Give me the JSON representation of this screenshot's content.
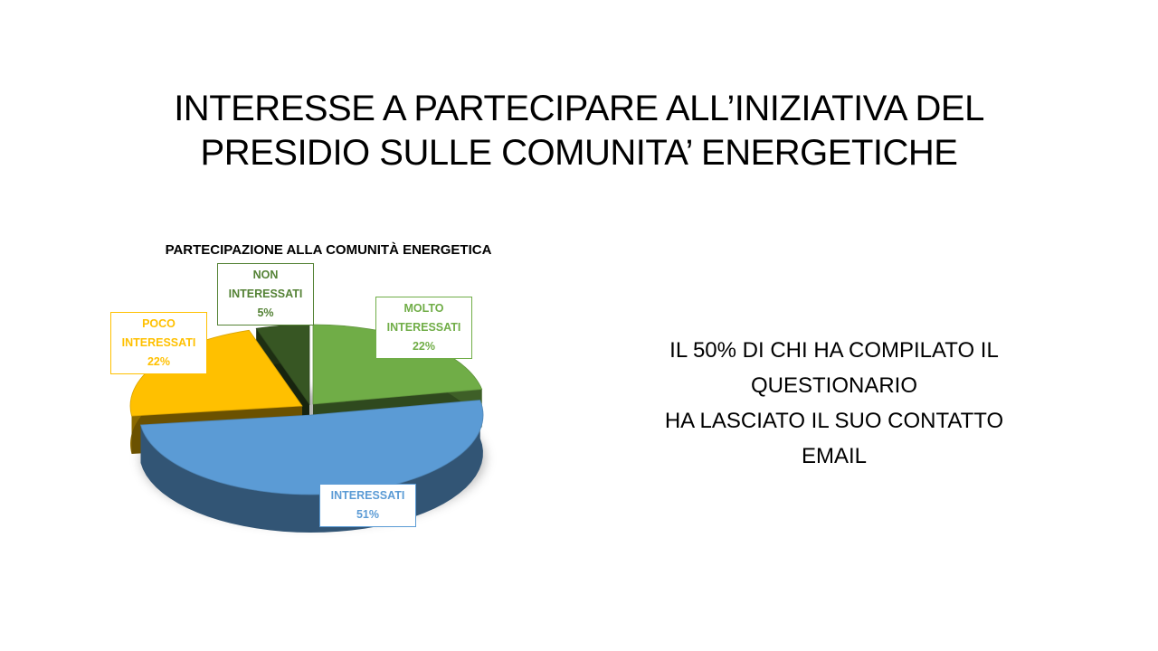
{
  "slide": {
    "title_lines": [
      "INTERESSE A PARTECIPARE ALL’INIZIATIVA DEL",
      "PRESIDIO SULLE COMUNITA’ ENERGETICHE"
    ],
    "side_text_lines": [
      "IL 50% DI CHI HA COMPILATO IL",
      "QUESTIONARIO",
      "HA LASCIATO IL SUO CONTATTO",
      "EMAIL"
    ]
  },
  "chart_data": {
    "type": "pie",
    "style": "3d-exploded",
    "title": "PARTECIPAZIONE ALLA COMUNITÀ ENERGETICA",
    "slices": [
      {
        "name_lines": [
          "MOLTO",
          "INTERESSATI"
        ],
        "value": 22,
        "value_label": "22%",
        "color": "#70ad47",
        "text_color": "#70ad47"
      },
      {
        "name_lines": [
          "INTERESSATI"
        ],
        "value": 51,
        "value_label": "51%",
        "color": "#5b9bd5",
        "text_color": "#5b9bd5"
      },
      {
        "name_lines": [
          "POCO",
          "INTERESSATI"
        ],
        "value": 22,
        "value_label": "22%",
        "color": "#ffc000",
        "text_color": "#ffc000"
      },
      {
        "name_lines": [
          "NON",
          "INTERESSATI"
        ],
        "value": 5,
        "value_label": "5%",
        "color": "#375623",
        "text_color": "#548235"
      }
    ]
  }
}
